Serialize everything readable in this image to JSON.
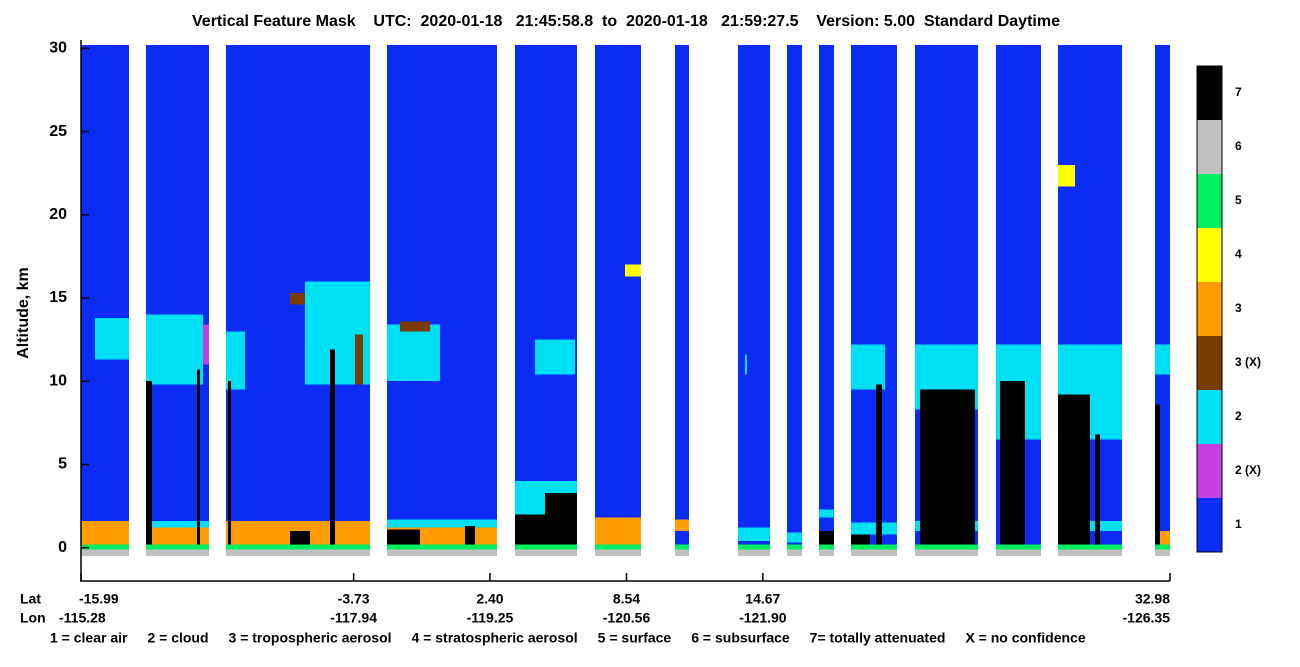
{
  "chart_data": {
    "type": "feature-mask",
    "title": "Vertical Feature Mask    UTC:  2020-01-18   21:45:58.8  to  2020-01-18   21:59:27.5    Version: 5.00  Standard Daytime",
    "y_label": "Altitude, km",
    "ylim": [
      -2,
      30.2
    ],
    "yticks": [
      0,
      5,
      10,
      15,
      20,
      25,
      30
    ],
    "xlim": [
      -15.99,
      32.98
    ],
    "x_row_labels": [
      "Lat",
      "Lon"
    ],
    "xticks": [
      -15.99,
      -3.73,
      2.4,
      8.54,
      14.67,
      32.98
    ],
    "xtick_labels": [
      "-15.99",
      "-3.73",
      "2.40",
      "8.54",
      "14.67",
      "32.98"
    ],
    "lon_labels": [
      "-115.28",
      "-117.94",
      "-119.25",
      "-120.56",
      "-121.90",
      "-126.35"
    ],
    "classes": [
      {
        "label": "1",
        "color": "#0a2cf5"
      },
      {
        "label": "2 (X)",
        "color": "#c63fe0"
      },
      {
        "label": "2",
        "color": "#00e0f5"
      },
      {
        "label": "3 (X)",
        "color": "#7a3c00"
      },
      {
        "label": "3",
        "color": "#ff9d00"
      },
      {
        "label": "4",
        "color": "#ffff00"
      },
      {
        "label": "5",
        "color": "#00f060"
      },
      {
        "label": "6",
        "color": "#c0c0c0"
      },
      {
        "label": "7",
        "color": "#000000"
      }
    ],
    "features": [
      [
        "1",
        -15.99,
        -13.83,
        -0.5,
        30.2
      ],
      [
        "1",
        -13.07,
        -10.23,
        -0.5,
        30.2
      ],
      [
        "1",
        -9.47,
        -2.99,
        -0.5,
        30.2
      ],
      [
        "1",
        -2.23,
        2.72,
        -0.5,
        30.2
      ],
      [
        "1",
        3.53,
        6.32,
        -0.5,
        30.2
      ],
      [
        "1",
        7.12,
        9.19,
        -0.5,
        30.2
      ],
      [
        "1",
        10.72,
        11.35,
        -0.5,
        30.2
      ],
      [
        "1",
        13.56,
        14.99,
        -0.5,
        30.2
      ],
      [
        "1",
        15.76,
        16.43,
        -0.5,
        30.2
      ],
      [
        "1",
        17.2,
        17.87,
        -0.5,
        30.2
      ],
      [
        "1",
        18.64,
        20.71,
        -0.5,
        30.2
      ],
      [
        "1",
        21.51,
        24.35,
        -0.5,
        30.2
      ],
      [
        "1",
        25.16,
        27.18,
        -0.5,
        30.2
      ],
      [
        "1",
        27.94,
        30.82,
        -0.5,
        30.2
      ],
      [
        "1",
        32.31,
        32.98,
        -0.5,
        30.2
      ],
      [
        "5",
        -15.99,
        -13.83,
        -0.1,
        0.2
      ],
      [
        "5",
        -13.07,
        -10.23,
        -0.1,
        0.2
      ],
      [
        "5",
        -9.47,
        -2.99,
        -0.1,
        0.2
      ],
      [
        "5",
        -2.23,
        2.72,
        -0.1,
        0.2
      ],
      [
        "5",
        3.53,
        6.32,
        -0.1,
        0.2
      ],
      [
        "5",
        7.12,
        9.19,
        -0.1,
        0.2
      ],
      [
        "5",
        10.72,
        11.35,
        -0.1,
        0.2
      ],
      [
        "5",
        13.56,
        14.99,
        -0.1,
        0.2
      ],
      [
        "5",
        15.76,
        16.43,
        -0.1,
        0.2
      ],
      [
        "5",
        17.2,
        17.87,
        -0.1,
        0.2
      ],
      [
        "5",
        18.64,
        20.71,
        -0.1,
        0.2
      ],
      [
        "5",
        21.51,
        24.35,
        -0.1,
        0.2
      ],
      [
        "5",
        25.16,
        27.18,
        -0.1,
        0.2
      ],
      [
        "5",
        27.94,
        30.82,
        -0.1,
        0.2
      ],
      [
        "5",
        32.31,
        32.98,
        -0.1,
        0.2
      ],
      [
        "6",
        -15.99,
        -13.83,
        -0.5,
        -0.1
      ],
      [
        "6",
        -13.07,
        -10.23,
        -0.5,
        -0.1
      ],
      [
        "6",
        -9.47,
        -2.99,
        -0.5,
        -0.1
      ],
      [
        "6",
        -2.23,
        2.72,
        -0.5,
        -0.1
      ],
      [
        "6",
        3.53,
        6.32,
        -0.5,
        -0.1
      ],
      [
        "6",
        7.12,
        9.19,
        -0.5,
        -0.1
      ],
      [
        "6",
        10.72,
        11.35,
        -0.5,
        -0.1
      ],
      [
        "6",
        13.56,
        14.99,
        -0.5,
        -0.1
      ],
      [
        "6",
        15.76,
        16.43,
        -0.5,
        -0.1
      ],
      [
        "6",
        17.2,
        17.87,
        -0.5,
        -0.1
      ],
      [
        "6",
        18.64,
        20.71,
        -0.5,
        -0.1
      ],
      [
        "6",
        21.51,
        24.35,
        -0.5,
        -0.1
      ],
      [
        "6",
        25.16,
        27.18,
        -0.5,
        -0.1
      ],
      [
        "6",
        27.94,
        30.82,
        -0.5,
        -0.1
      ],
      [
        "6",
        32.31,
        32.98,
        -0.5,
        -0.1
      ],
      [
        "3",
        -15.99,
        -13.83,
        0.2,
        1.6
      ],
      [
        "2",
        -15.36,
        -13.83,
        11.3,
        13.8
      ],
      [
        "3",
        -13.07,
        -10.23,
        0.2,
        1.2
      ],
      [
        "2",
        -13.07,
        -10.23,
        1.2,
        1.6
      ],
      [
        "2",
        -13.07,
        -10.5,
        9.8,
        14
      ],
      [
        "2 (X)",
        -10.5,
        -10.23,
        11,
        13.4
      ],
      [
        "7",
        -13.07,
        -12.8,
        0.2,
        10
      ],
      [
        "7",
        -10.77,
        -10.64,
        0.2,
        10.7
      ],
      [
        "3",
        -9.47,
        -2.99,
        0.2,
        1.6
      ],
      [
        "2",
        -9.47,
        -8.61,
        9.5,
        13
      ],
      [
        "7",
        -9.38,
        -9.25,
        0.2,
        10
      ],
      [
        "3 (X)",
        -6.59,
        -5.92,
        14.6,
        15.3
      ],
      [
        "2",
        -5.92,
        -2.99,
        9.8,
        16
      ],
      [
        "3 (X)",
        -3.67,
        -3.3,
        9.8,
        12.8
      ],
      [
        "7",
        -4.79,
        -4.57,
        0.2,
        11.9
      ],
      [
        "7",
        -6.59,
        -5.7,
        0.2,
        1.0
      ],
      [
        "3",
        -2.23,
        2.72,
        0.2,
        1.5
      ],
      [
        "2",
        -2.23,
        2.72,
        1.2,
        1.7
      ],
      [
        "2",
        -2.23,
        0.15,
        10,
        13.4
      ],
      [
        "3 (X)",
        -1.64,
        -0.3,
        13,
        13.6
      ],
      [
        "7",
        -2.23,
        -0.75,
        0.2,
        1.1
      ],
      [
        "7",
        1.28,
        1.73,
        0.2,
        1.3
      ],
      [
        "2",
        4.43,
        6.23,
        10.4,
        12.5
      ],
      [
        "2",
        3.53,
        6.32,
        1.8,
        4.0
      ],
      [
        "7",
        3.53,
        4.88,
        0.2,
        2.0
      ],
      [
        "7",
        4.88,
        6.32,
        0.2,
        3.3
      ],
      [
        "3",
        7.12,
        9.19,
        0.2,
        1.8
      ],
      [
        "4",
        8.47,
        9.19,
        16.3,
        17
      ],
      [
        "3",
        10.72,
        11.35,
        1.0,
        1.7
      ],
      [
        "2",
        13.56,
        14.99,
        0.4,
        1.2
      ],
      [
        "2",
        13.87,
        13.96,
        10.4,
        11.6
      ],
      [
        "2",
        15.76,
        16.43,
        0.3,
        0.9
      ],
      [
        "2",
        17.2,
        17.87,
        1.8,
        2.3
      ],
      [
        "7",
        17.2,
        17.87,
        0.2,
        1.0
      ],
      [
        "2",
        18.64,
        20.17,
        9.5,
        12.2
      ],
      [
        "2",
        18.64,
        20.71,
        0.8,
        1.5
      ],
      [
        "7",
        19.76,
        20.03,
        0.2,
        9.8
      ],
      [
        "7",
        18.64,
        19.49,
        0.2,
        0.8
      ],
      [
        "2",
        21.51,
        24.35,
        8.3,
        12.2
      ],
      [
        "2",
        21.51,
        24.35,
        1.0,
        1.6
      ],
      [
        "7",
        21.74,
        24.21,
        0.2,
        9.5
      ],
      [
        "2",
        25.16,
        27.18,
        6.5,
        12.2
      ],
      [
        "7",
        25.34,
        26.46,
        0.2,
        10
      ],
      [
        "2",
        27.94,
        30.82,
        6.5,
        12.2
      ],
      [
        "2",
        29.38,
        30.82,
        1.0,
        1.6
      ],
      [
        "7",
        27.94,
        29.38,
        0.2,
        9.2
      ],
      [
        "7",
        29.61,
        29.83,
        0.2,
        6.8
      ],
      [
        "4",
        27.94,
        28.71,
        21.7,
        23
      ],
      [
        "2",
        32.31,
        32.98,
        10.4,
        12.2
      ],
      [
        "3",
        32.31,
        32.98,
        0.2,
        1.0
      ],
      [
        "7",
        32.31,
        32.54,
        0.2,
        8.6
      ]
    ],
    "legend_items": [
      "1 = clear air",
      "2 = cloud",
      "3 = tropospheric aerosol",
      "4 = stratospheric aerosol",
      "5 = surface",
      "6 = subsurface",
      "7= totally attenuated",
      "X = no confidence"
    ]
  }
}
